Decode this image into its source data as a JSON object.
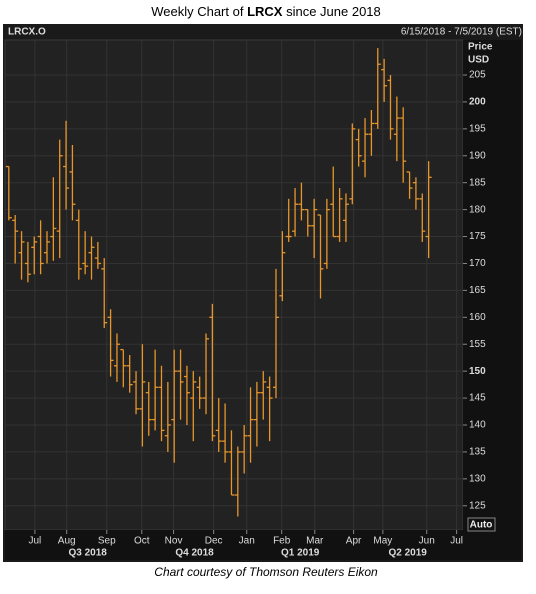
{
  "chart_data": {
    "type": "ohlc",
    "title": {
      "before": "Weekly Chart of ",
      "bold": "LRCX",
      "after": " since June 2018"
    },
    "symbol": "LRCX.O",
    "date_range": "6/15/2018 - 7/5/2019 (EST)",
    "y_axis_label": [
      "Price",
      "USD"
    ],
    "button": "Auto",
    "footer": "Chart courtesy of Thomson Reuters Eikon",
    "color": "#e8962a",
    "grid": true,
    "categories": [
      null,
      null,
      null,
      null,
      null,
      null,
      null,
      null,
      null,
      null,
      null,
      null,
      null,
      null,
      null,
      null,
      null,
      null,
      null,
      null,
      null,
      null,
      null,
      null,
      null,
      null,
      null,
      null,
      null,
      null,
      null,
      null,
      null,
      null,
      null,
      null,
      null,
      null,
      null,
      null,
      null,
      null,
      null,
      null,
      null,
      null,
      null,
      null,
      null,
      null,
      null,
      null,
      null,
      null,
      null,
      null,
      null,
      null,
      null,
      null,
      null,
      null,
      null,
      null,
      null,
      null,
      null
    ],
    "open": [
      188,
      178,
      172,
      170,
      173,
      175,
      172,
      175,
      176,
      188,
      187,
      178,
      170,
      172,
      171,
      169,
      160,
      151,
      154,
      151,
      148,
      143,
      146,
      141,
      147,
      138,
      141,
      150,
      149,
      145,
      147,
      145,
      160,
      139,
      137,
      135,
      127,
      135,
      138,
      141,
      146,
      147,
      147,
      164,
      175,
      176,
      181,
      180,
      177,
      179,
      170,
      181,
      175,
      178,
      182,
      193,
      189,
      194,
      196,
      206,
      204,
      194,
      197,
      187,
      185,
      182,
      175
    ],
    "high": [
      188,
      179,
      176,
      174,
      175,
      178,
      176,
      186,
      193,
      196.5,
      192,
      180,
      176,
      175,
      174,
      171,
      161.5,
      157,
      154,
      153,
      150,
      155,
      148,
      154,
      151,
      148,
      154,
      154,
      151,
      150,
      149,
      157,
      162.5,
      145,
      144,
      139,
      136,
      140,
      147,
      148,
      150,
      149,
      169,
      176,
      182,
      184,
      185,
      180,
      182,
      179,
      182,
      188,
      184,
      183,
      196,
      195,
      197,
      198.5,
      210,
      208,
      205,
      201,
      199,
      187,
      186,
      183,
      189
    ],
    "low": [
      178,
      170,
      167,
      166.5,
      168,
      168,
      170,
      170.5,
      171,
      180,
      178,
      167,
      168,
      167,
      169,
      158,
      149,
      148,
      147,
      146,
      142,
      136,
      138,
      139,
      137,
      135,
      133,
      141,
      140,
      137,
      143,
      142,
      137,
      135,
      133,
      127,
      123,
      131,
      133,
      136,
      141,
      137,
      145,
      163,
      174,
      175,
      178,
      175,
      171,
      163.5,
      169,
      175,
      174,
      174,
      181,
      188,
      186,
      190,
      195,
      200,
      193,
      189,
      185,
      182,
      180,
      174,
      171
    ],
    "close": [
      178.5,
      176,
      174,
      168,
      174,
      170,
      174,
      176.5,
      190,
      184,
      181,
      169,
      169.5,
      173,
      170,
      159,
      152,
      155,
      151,
      147.5,
      143,
      148,
      141,
      147,
      139,
      140,
      150,
      148,
      146,
      148,
      145,
      156,
      138,
      137,
      135,
      127,
      135,
      138,
      141,
      146,
      148,
      145,
      160,
      172,
      175,
      181,
      180,
      177,
      180,
      169,
      180,
      175,
      182,
      181,
      195,
      190,
      194,
      196,
      207,
      203,
      195,
      197,
      189,
      184,
      182,
      176,
      186
    ],
    "ylim": [
      120.5,
      211.5
    ],
    "yticks": [
      125,
      130,
      135,
      140,
      145,
      150,
      155,
      160,
      165,
      170,
      175,
      180,
      185,
      190,
      195,
      200,
      205
    ],
    "major_yticks": [
      150,
      200
    ],
    "xlim": [
      -0.6,
      71.4
    ],
    "xticks": [
      {
        "value": 4.1,
        "label": "Jul"
      },
      {
        "value": 9.1,
        "label": "Aug"
      },
      {
        "value": 15.4,
        "label": "Sep"
      },
      {
        "value": 20.9,
        "label": "Oct"
      },
      {
        "value": 25.9,
        "label": "Nov"
      },
      {
        "value": 32.2,
        "label": "Dec"
      },
      {
        "value": 37.4,
        "label": "Jan"
      },
      {
        "value": 42.9,
        "label": "Feb"
      },
      {
        "value": 48.1,
        "label": "Mar"
      },
      {
        "value": 54.2,
        "label": "Apr"
      },
      {
        "value": 58.8,
        "label": "May"
      },
      {
        "value": 65.7,
        "label": "Jun"
      },
      {
        "value": 70.4,
        "label": "Jul"
      }
    ],
    "quarters": [
      {
        "value": 12.4,
        "label": "Q3 2018"
      },
      {
        "value": 29.2,
        "label": "Q4 2018"
      },
      {
        "value": 45.8,
        "label": "Q1 2019"
      },
      {
        "value": 62.7,
        "label": "Q2 2019"
      }
    ]
  }
}
